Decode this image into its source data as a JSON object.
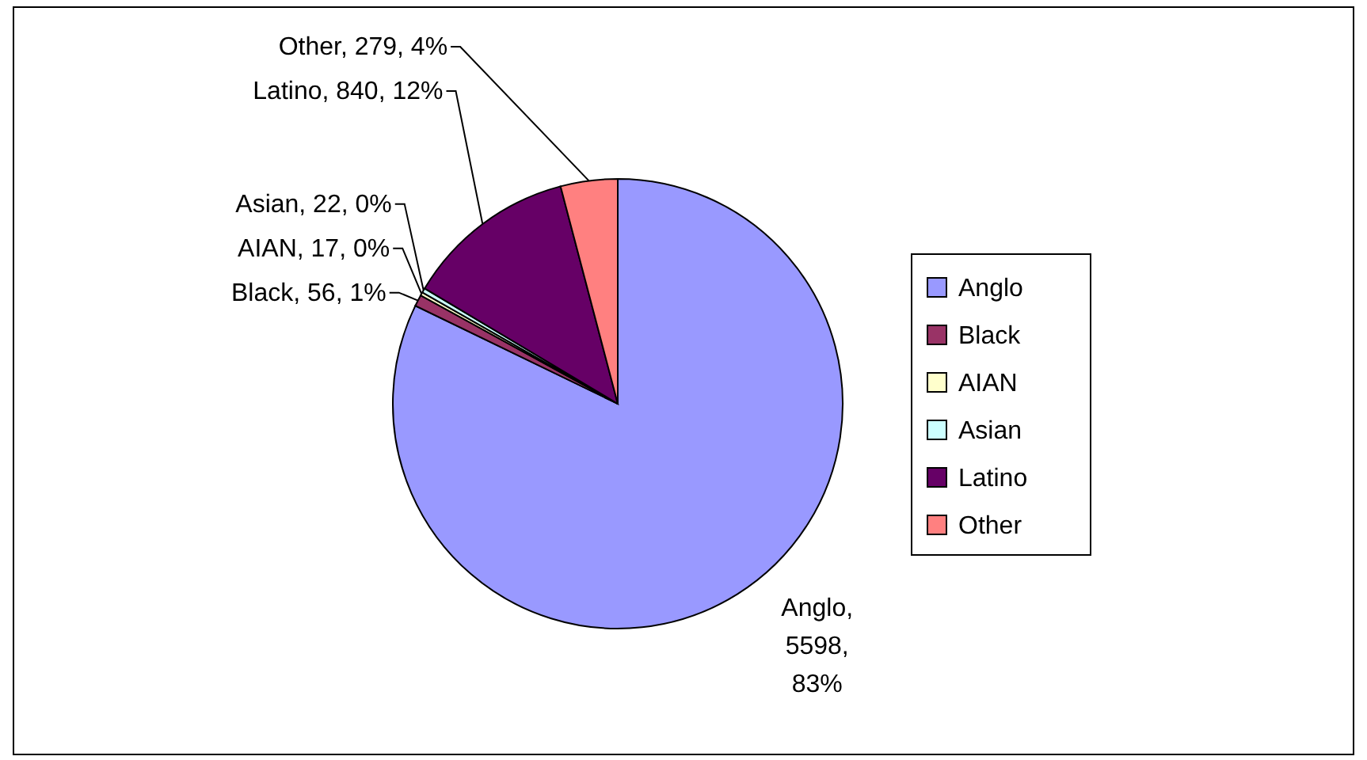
{
  "chart_data": {
    "type": "pie",
    "categories": [
      "Anglo",
      "Black",
      "AIAN",
      "Asian",
      "Latino",
      "Other"
    ],
    "values": [
      5598,
      56,
      17,
      22,
      840,
      279
    ],
    "colors": [
      "#9999ff",
      "#993366",
      "#ffffcc",
      "#ccffff",
      "#660066",
      "#ff8080"
    ],
    "value_labels": [
      "Anglo, 5598, 83%",
      "Black, 56, 1%",
      "AIAN, 17, 0%",
      "Asian, 22, 0%",
      "Latino, 840, 12%",
      "Other, 279, 4%"
    ],
    "legend": "right"
  }
}
